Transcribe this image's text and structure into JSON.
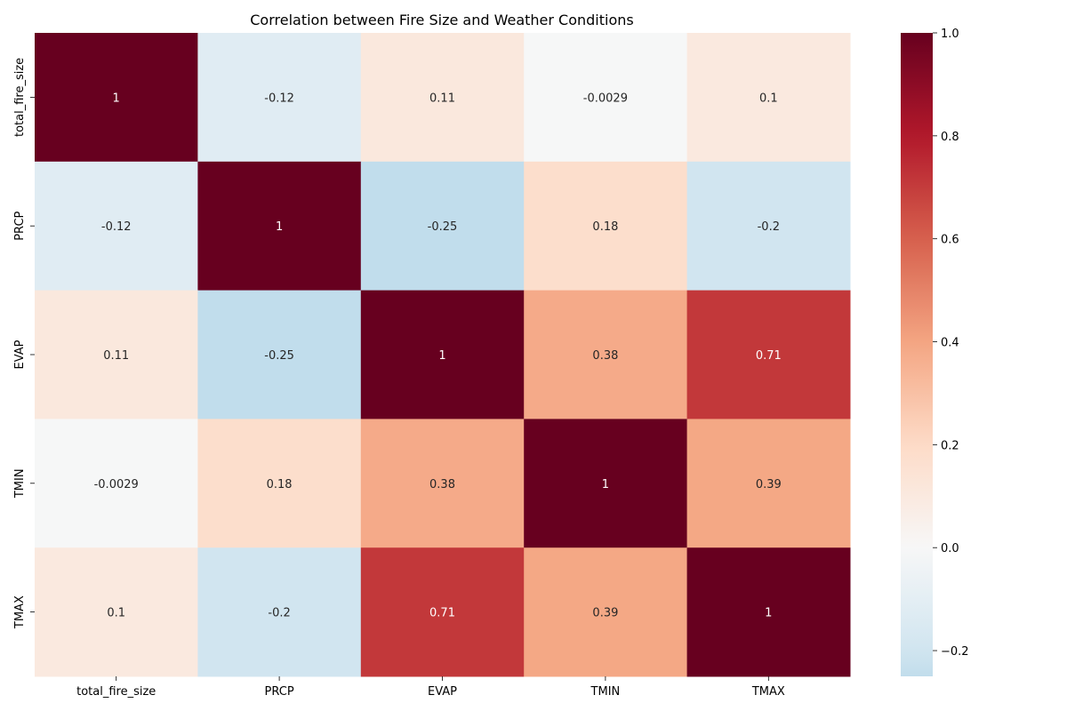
{
  "chart_data": {
    "type": "heatmap",
    "title": "Correlation between Fire Size and Weather Conditions",
    "xlabel": "",
    "ylabel": "",
    "x_categories": [
      "total_fire_size",
      "PRCP",
      "EVAP",
      "TMIN",
      "TMAX"
    ],
    "y_categories": [
      "total_fire_size",
      "PRCP",
      "EVAP",
      "TMIN",
      "TMAX"
    ],
    "values": [
      [
        1,
        -0.12,
        0.11,
        -0.0029,
        0.1
      ],
      [
        -0.12,
        1,
        -0.25,
        0.18,
        -0.2
      ],
      [
        0.11,
        -0.25,
        1,
        0.38,
        0.71
      ],
      [
        -0.0029,
        0.18,
        0.38,
        1,
        0.39
      ],
      [
        0.1,
        -0.2,
        0.71,
        0.39,
        1
      ]
    ],
    "cell_labels": [
      [
        "1",
        "-0.12",
        "0.11",
        "-0.0029",
        "0.1"
      ],
      [
        "-0.12",
        "1",
        "-0.25",
        "0.18",
        "-0.2"
      ],
      [
        "0.11",
        "-0.25",
        "1",
        "0.38",
        "0.71"
      ],
      [
        "-0.0029",
        "0.18",
        "0.38",
        "1",
        "0.39"
      ],
      [
        "0.1",
        "-0.2",
        "0.71",
        "0.39",
        "1"
      ]
    ],
    "colormap": "RdBu_r",
    "colorbar": {
      "vmin": -0.25,
      "vmax": 1.0,
      "ticks": [
        -0.2,
        0.0,
        0.2,
        0.4,
        0.6,
        0.8,
        1.0
      ],
      "tick_labels": [
        "−0.2",
        "0.0",
        "0.2",
        "0.4",
        "0.6",
        "0.8",
        "1.0"
      ]
    },
    "grid": false,
    "legend": "colorbar-right"
  }
}
